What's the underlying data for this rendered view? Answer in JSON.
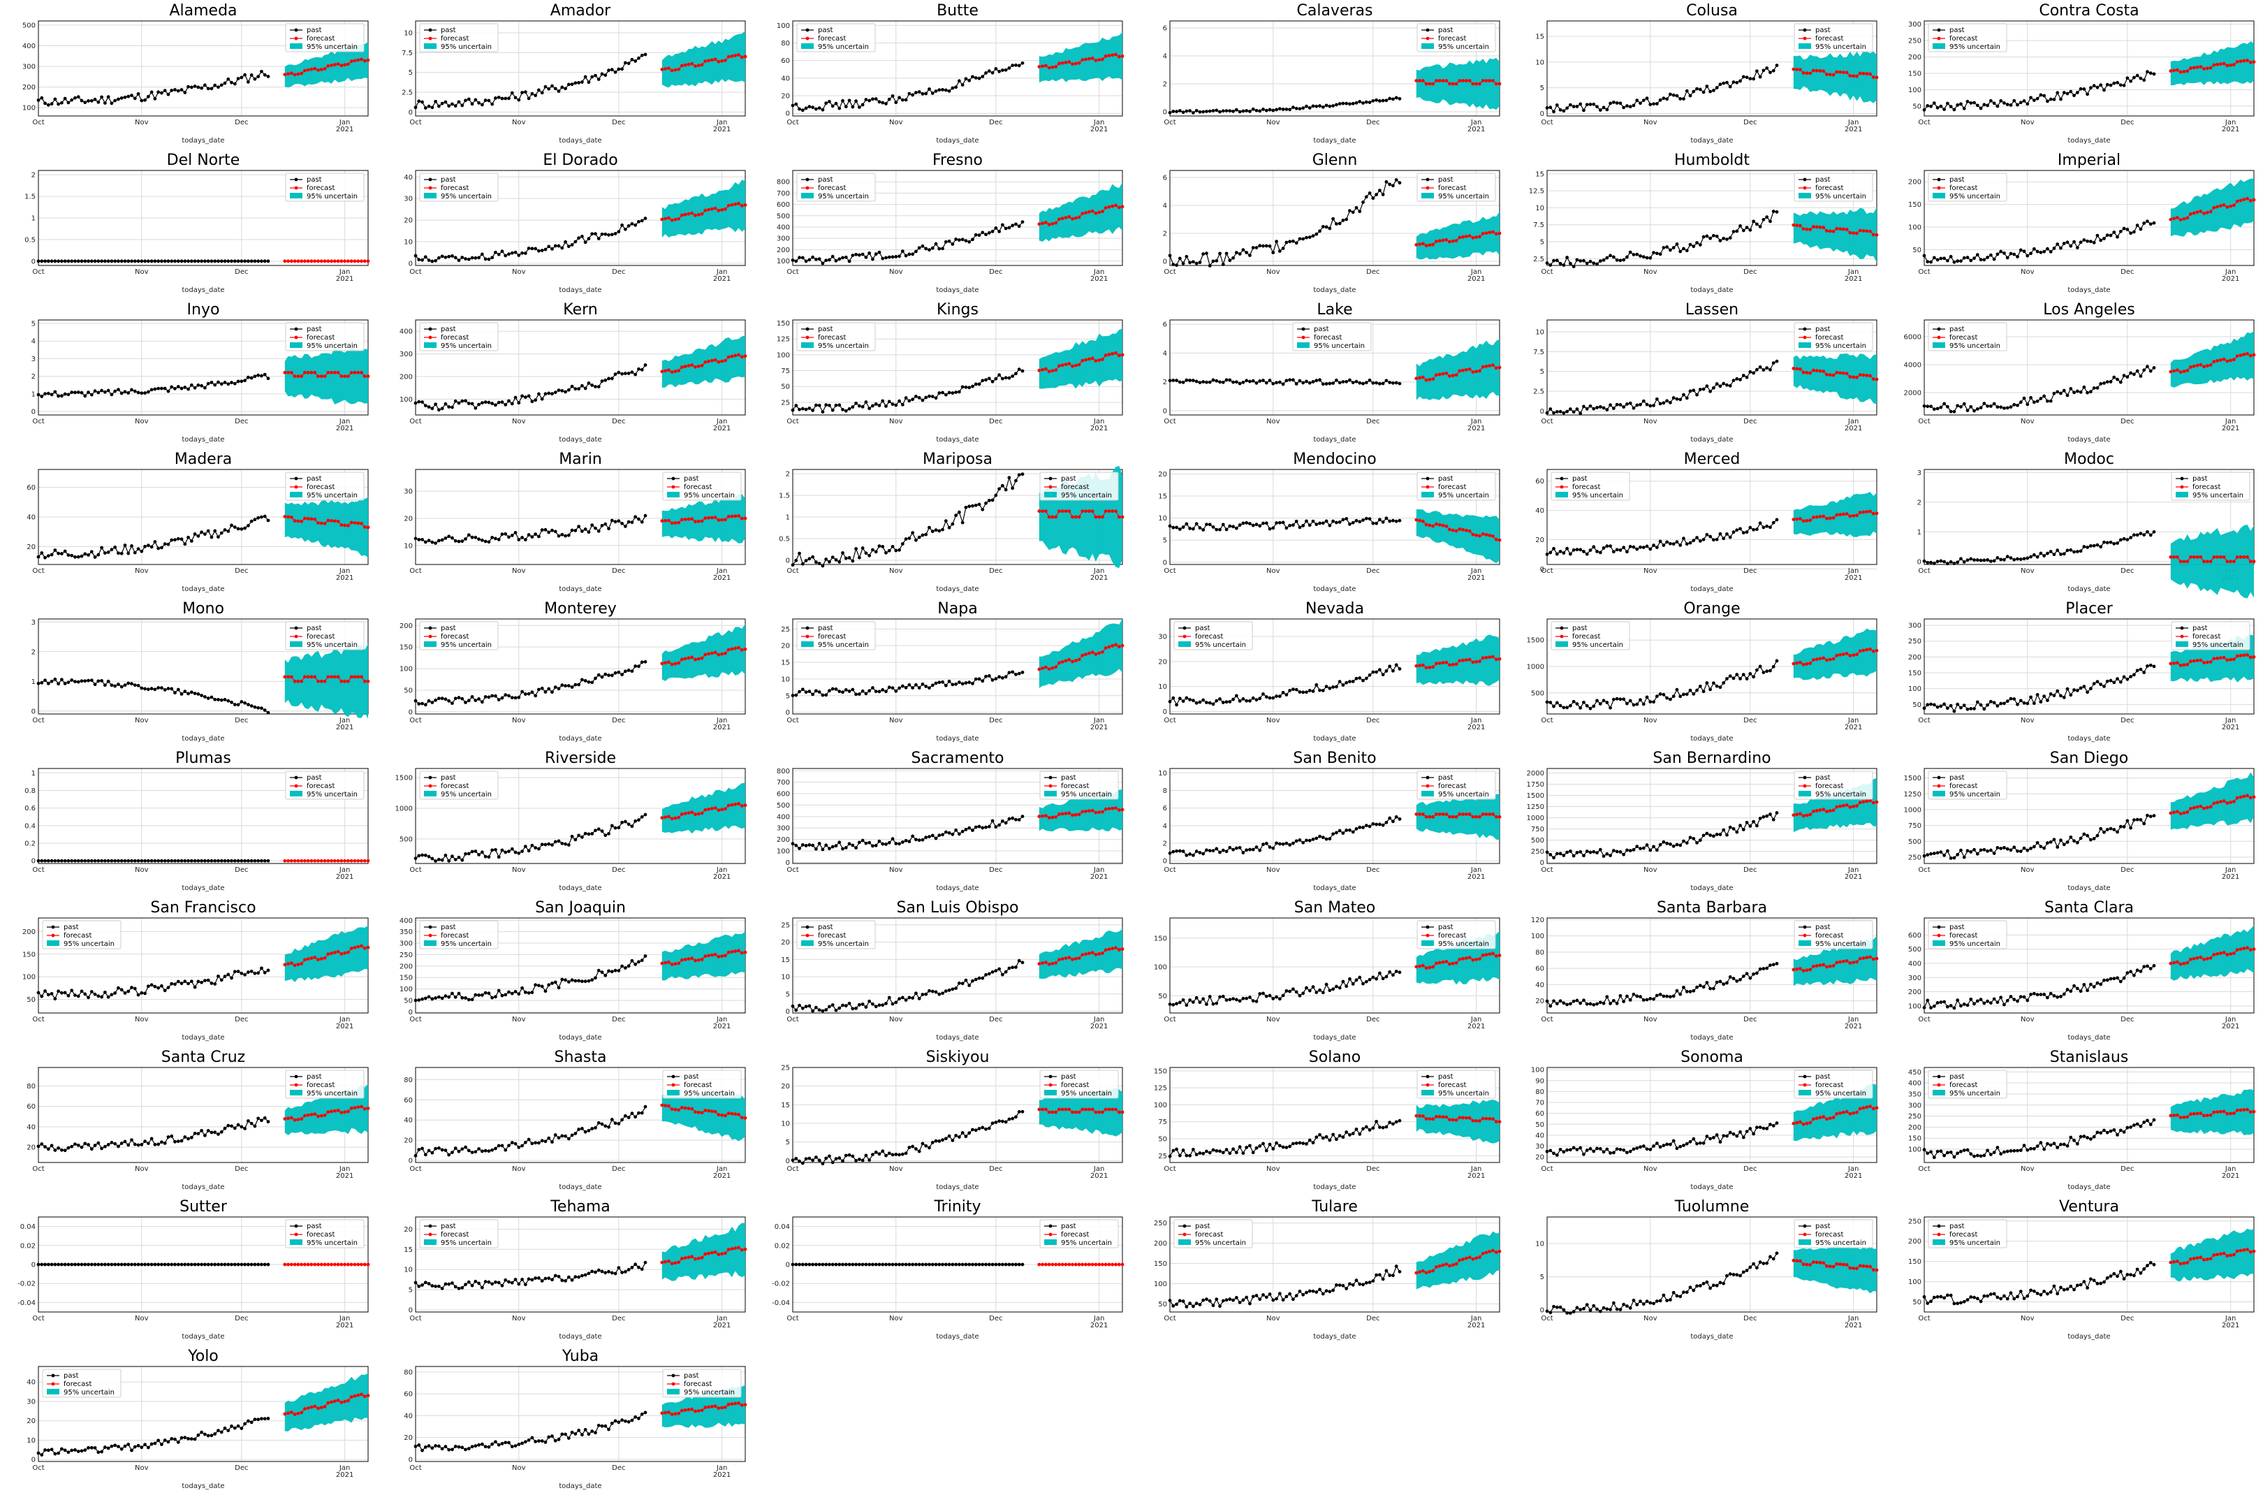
{
  "figure": {
    "legend": {
      "past": "past",
      "forecast": "forecast",
      "band": "95% uncertain"
    },
    "xlabel": "todays_date",
    "xticks": [
      "Oct",
      "Nov",
      "Dec",
      "Jan\n2021"
    ],
    "colors": {
      "past": "#000000",
      "forecast": "#ff0000",
      "band": "#00bfbf",
      "grid": "#d9d9d9"
    }
  },
  "chart_data": [
    {
      "county": "Alameda",
      "type": "line",
      "yticks": [
        100,
        200,
        300,
        400,
        500
      ],
      "ylim": [
        60,
        520
      ],
      "past_start": 130,
      "past_end": 270,
      "fc_start": 250,
      "fc_end": 330,
      "band": 70,
      "legend": "top-right",
      "legend_pos": "top-right"
    },
    {
      "county": "Amador",
      "type": "line",
      "yticks": [
        0.0,
        2.5,
        5.0,
        7.5,
        10.0
      ],
      "ylim": [
        -0.5,
        11.5
      ],
      "past_start": 1,
      "past_end": 7,
      "fc_start": 5,
      "fc_end": 7,
      "band": 2.5,
      "legend_pos": "top-left"
    },
    {
      "county": "Butte",
      "type": "line",
      "yticks": [
        0,
        20,
        40,
        60,
        80,
        100
      ],
      "ylim": [
        -3,
        105
      ],
      "past_start": 8,
      "past_end": 58,
      "fc_start": 50,
      "fc_end": 65,
      "band": 20,
      "legend_pos": "top-left"
    },
    {
      "county": "Calaveras",
      "type": "line",
      "yticks": [
        0,
        2,
        4,
        6
      ],
      "ylim": [
        -0.3,
        6.5
      ],
      "past_start": 0,
      "past_end": 1,
      "fc_start": 2,
      "fc_end": 2,
      "band": 1.5,
      "legend_pos": "top-right"
    },
    {
      "county": "Colusa",
      "type": "line",
      "yticks": [
        0,
        5,
        10,
        15
      ],
      "ylim": [
        -0.5,
        18
      ],
      "past_start": 1,
      "past_end": 9,
      "fc_start": 8,
      "fc_end": 7,
      "band": 4,
      "legend_pos": "top-right"
    },
    {
      "county": "Contra Costa",
      "type": "line",
      "yticks": [
        50,
        100,
        150,
        200,
        250,
        300
      ],
      "ylim": [
        20,
        310
      ],
      "past_start": 50,
      "past_end": 150,
      "fc_start": 150,
      "fc_end": 185,
      "band": 50,
      "legend_pos": "top-left"
    },
    {
      "county": "Del Norte",
      "type": "line",
      "yticks": [
        0.0,
        0.5,
        1.0,
        1.5,
        2.0
      ],
      "ylim": [
        -0.1,
        2.1
      ],
      "past_start": 0,
      "past_end": 0,
      "fc_start": 0,
      "fc_end": 0,
      "band": 0,
      "legend_pos": "top-right"
    },
    {
      "county": "El Dorado",
      "type": "line",
      "yticks": [
        0,
        10,
        20,
        30,
        40
      ],
      "ylim": [
        -1,
        43
      ],
      "past_start": 2,
      "past_end": 20,
      "fc_start": 19,
      "fc_end": 27,
      "band": 9,
      "legend_pos": "top-left"
    },
    {
      "county": "Fresno",
      "type": "line",
      "yticks": [
        100,
        200,
        300,
        400,
        500,
        600,
        700,
        800
      ],
      "ylim": [
        60,
        900
      ],
      "past_start": 110,
      "past_end": 450,
      "fc_start": 400,
      "fc_end": 580,
      "band": 170,
      "legend_pos": "top-left"
    },
    {
      "county": "Glenn",
      "type": "line",
      "yticks": [
        0,
        2,
        4,
        6
      ],
      "ylim": [
        -0.3,
        6.5
      ],
      "past_start": 0,
      "past_end": 6,
      "fc_start": 1,
      "fc_end": 2,
      "band": 1.2,
      "legend_pos": "top-right"
    },
    {
      "county": "Humboldt",
      "type": "line",
      "yticks": [
        2.5,
        5.0,
        7.5,
        10.0,
        12.5,
        15.0
      ],
      "ylim": [
        1.5,
        15.5
      ],
      "past_start": 2,
      "past_end": 9,
      "fc_start": 7,
      "fc_end": 6,
      "band": 3,
      "legend_pos": "top-right"
    },
    {
      "county": "Imperial",
      "type": "line",
      "yticks": [
        50,
        100,
        150,
        200
      ],
      "ylim": [
        15,
        225
      ],
      "past_start": 30,
      "past_end": 110,
      "fc_start": 110,
      "fc_end": 160,
      "band": 45,
      "legend_pos": "top-left"
    },
    {
      "county": "Inyo",
      "type": "line",
      "yticks": [
        0,
        1,
        2,
        3,
        4,
        5
      ],
      "ylim": [
        -0.2,
        5.2
      ],
      "past_start": 1,
      "past_end": 2,
      "fc_start": 2,
      "fc_end": 2,
      "band": 1.4,
      "legend_pos": "top-right"
    },
    {
      "county": "Kern",
      "type": "line",
      "yticks": [
        100,
        200,
        300,
        400
      ],
      "ylim": [
        30,
        450
      ],
      "past_start": 70,
      "past_end": 240,
      "fc_start": 210,
      "fc_end": 290,
      "band": 80,
      "legend_pos": "top-left"
    },
    {
      "county": "Kings",
      "type": "line",
      "yticks": [
        25,
        50,
        75,
        100,
        125,
        150
      ],
      "ylim": [
        5,
        155
      ],
      "past_start": 15,
      "past_end": 75,
      "fc_start": 70,
      "fc_end": 100,
      "band": 35,
      "legend_pos": "top-left"
    },
    {
      "county": "Lake",
      "type": "line",
      "yticks": [
        0,
        2,
        4,
        6
      ],
      "ylim": [
        -0.3,
        6.3
      ],
      "past_start": 2,
      "past_end": 2,
      "fc_start": 2,
      "fc_end": 3,
      "band": 1.6,
      "legend_pos": "top-center"
    },
    {
      "county": "Lassen",
      "type": "line",
      "yticks": [
        0.0,
        2.5,
        5.0,
        7.5,
        10.0
      ],
      "ylim": [
        -0.5,
        11.5
      ],
      "past_start": 0,
      "past_end": 6,
      "fc_start": 5,
      "fc_end": 4,
      "band": 2.5,
      "legend_pos": "top-right"
    },
    {
      "county": "Los Angeles",
      "type": "line",
      "yticks": [
        2000,
        4000,
        6000
      ],
      "ylim": [
        400,
        7200
      ],
      "past_start": 900,
      "past_end": 3800,
      "fc_start": 3300,
      "fc_end": 4700,
      "band": 1300,
      "legend_pos": "top-left"
    },
    {
      "county": "Madera",
      "type": "line",
      "yticks": [
        20,
        40,
        60
      ],
      "ylim": [
        8,
        72
      ],
      "past_start": 15,
      "past_end": 40,
      "fc_start": 38,
      "fc_end": 33,
      "band": 15,
      "legend_pos": "top-right"
    },
    {
      "county": "Marin",
      "type": "line",
      "yticks": [
        10,
        20,
        30
      ],
      "ylim": [
        3,
        38
      ],
      "past_start": 12,
      "past_end": 20,
      "fc_start": 18,
      "fc_end": 20,
      "band": 7,
      "legend_pos": "top-right"
    },
    {
      "county": "Mariposa",
      "type": "line",
      "yticks": [
        0.0,
        0.5,
        1.0,
        1.5,
        2.0
      ],
      "ylim": [
        -0.1,
        2.1
      ],
      "past_start": 0,
      "past_end": 2,
      "fc_start": 1,
      "fc_end": 1,
      "band": 0.9,
      "legend_pos": "top-right"
    },
    {
      "county": "Mendocino",
      "type": "line",
      "yticks": [
        0,
        5,
        10,
        15,
        20
      ],
      "ylim": [
        -0.5,
        21
      ],
      "past_start": 8,
      "past_end": 10,
      "fc_start": 9,
      "fc_end": 5,
      "band": 4,
      "legend_pos": "top-right"
    },
    {
      "county": "Merced",
      "type": "line",
      "yticks": [
        0,
        20,
        40,
        60
      ],
      "ylim": [
        3,
        68
      ],
      "past_start": 12,
      "past_end": 32,
      "fc_start": 32,
      "fc_end": 38,
      "band": 12,
      "legend_pos": "top-left"
    },
    {
      "county": "Modoc",
      "type": "line",
      "yticks": [
        0,
        1,
        2,
        3
      ],
      "ylim": [
        -0.1,
        3.1
      ],
      "past_start": 0,
      "past_end": 1,
      "fc_start": 0,
      "fc_end": 0,
      "band": 1,
      "legend_pos": "top-right"
    },
    {
      "county": "Mono",
      "type": "line",
      "yticks": [
        0,
        1,
        2,
        3
      ],
      "ylim": [
        -0.1,
        3.1
      ],
      "past_start": 1,
      "past_end": 0,
      "fc_start": 1,
      "fc_end": 1,
      "band": 1,
      "legend_pos": "top-right"
    },
    {
      "county": "Monterey",
      "type": "line",
      "yticks": [
        0,
        50,
        100,
        150,
        200
      ],
      "ylim": [
        -5,
        215
      ],
      "past_start": 25,
      "past_end": 110,
      "fc_start": 105,
      "fc_end": 145,
      "band": 45,
      "legend_pos": "top-left"
    },
    {
      "county": "Napa",
      "type": "line",
      "yticks": [
        0,
        5,
        10,
        15,
        20,
        25
      ],
      "ylim": [
        -0.5,
        28
      ],
      "past_start": 6,
      "past_end": 12,
      "fc_start": 12,
      "fc_end": 20,
      "band": 6,
      "legend_pos": "top-left"
    },
    {
      "county": "Nevada",
      "type": "line",
      "yticks": [
        0,
        10,
        20,
        30
      ],
      "ylim": [
        -1,
        37
      ],
      "past_start": 4,
      "past_end": 18,
      "fc_start": 17,
      "fc_end": 21,
      "band": 8,
      "legend_pos": "top-left"
    },
    {
      "county": "Orange",
      "type": "line",
      "yticks": [
        500,
        1000,
        1500
      ],
      "ylim": [
        100,
        1900
      ],
      "past_start": 250,
      "past_end": 1050,
      "fc_start": 1000,
      "fc_end": 1300,
      "band": 350,
      "legend_pos": "top-left"
    },
    {
      "county": "Placer",
      "type": "line",
      "yticks": [
        50,
        100,
        150,
        200,
        250,
        300
      ],
      "ylim": [
        20,
        320
      ],
      "past_start": 40,
      "past_end": 170,
      "fc_start": 170,
      "fc_end": 200,
      "band": 60,
      "legend_pos": "top-right"
    },
    {
      "county": "Plumas",
      "type": "line",
      "yticks": [
        0.0,
        0.2,
        0.4,
        0.6,
        0.8,
        1.0
      ],
      "ylim": [
        -0.03,
        1.05
      ],
      "past_start": 0,
      "past_end": 0,
      "fc_start": 0,
      "fc_end": 0,
      "band": 0,
      "legend_pos": "top-right"
    },
    {
      "county": "Riverside",
      "type": "line",
      "yticks": [
        500,
        1000,
        1500
      ],
      "ylim": [
        100,
        1650
      ],
      "past_start": 200,
      "past_end": 850,
      "fc_start": 800,
      "fc_end": 1050,
      "band": 300,
      "legend_pos": "top-left"
    },
    {
      "county": "Sacramento",
      "type": "line",
      "yticks": [
        0,
        100,
        200,
        300,
        400,
        500,
        600,
        700,
        800
      ],
      "ylim": [
        -10,
        820
      ],
      "past_start": 140,
      "past_end": 400,
      "fc_start": 380,
      "fc_end": 460,
      "band": 140,
      "legend_pos": "top-right"
    },
    {
      "county": "San Benito",
      "type": "line",
      "yticks": [
        0,
        2,
        4,
        6,
        8,
        10
      ],
      "ylim": [
        -0.3,
        10.5
      ],
      "past_start": 1,
      "past_end": 5,
      "fc_start": 5,
      "fc_end": 5,
      "band": 2,
      "legend_pos": "top-right"
    },
    {
      "county": "San Bernardino",
      "type": "line",
      "yticks": [
        0,
        250,
        500,
        750,
        1000,
        1250,
        1500,
        1750,
        2000
      ],
      "ylim": [
        -20,
        2100
      ],
      "past_start": 180,
      "past_end": 1050,
      "fc_start": 1000,
      "fc_end": 1350,
      "band": 400,
      "legend_pos": "top-right"
    },
    {
      "county": "San Diego",
      "type": "line",
      "yticks": [
        250,
        500,
        750,
        1000,
        1250,
        1500
      ],
      "ylim": [
        150,
        1650
      ],
      "past_start": 300,
      "past_end": 900,
      "fc_start": 900,
      "fc_end": 1200,
      "band": 300,
      "legend_pos": "top-left"
    },
    {
      "county": "San Francisco",
      "type": "line",
      "yticks": [
        50,
        100,
        150,
        200
      ],
      "ylim": [
        20,
        230
      ],
      "past_start": 60,
      "past_end": 120,
      "fc_start": 120,
      "fc_end": 165,
      "band": 45,
      "legend_pos": "top-left"
    },
    {
      "county": "San Joaquin",
      "type": "line",
      "yticks": [
        0,
        50,
        100,
        150,
        200,
        250,
        300,
        350,
        400
      ],
      "ylim": [
        -5,
        410
      ],
      "past_start": 60,
      "past_end": 230,
      "fc_start": 200,
      "fc_end": 260,
      "band": 80,
      "legend_pos": "top-left"
    },
    {
      "county": "San Luis Obispo",
      "type": "line",
      "yticks": [
        0,
        5,
        10,
        15,
        20,
        25
      ],
      "ylim": [
        -0.5,
        27
      ],
      "past_start": 1,
      "past_end": 14,
      "fc_start": 13,
      "fc_end": 18,
      "band": 5,
      "legend_pos": "top-left"
    },
    {
      "county": "San Mateo",
      "type": "line",
      "yticks": [
        50,
        100,
        150
      ],
      "ylim": [
        20,
        185
      ],
      "past_start": 40,
      "past_end": 95,
      "fc_start": 95,
      "fc_end": 120,
      "band": 35,
      "legend_pos": "top-right"
    },
    {
      "county": "Santa Barbara",
      "type": "line",
      "yticks": [
        20,
        40,
        60,
        80,
        100,
        120
      ],
      "ylim": [
        5,
        122
      ],
      "past_start": 18,
      "past_end": 62,
      "fc_start": 55,
      "fc_end": 72,
      "band": 22,
      "legend_pos": "top-right"
    },
    {
      "county": "Santa Clara",
      "type": "line",
      "yticks": [
        100,
        200,
        300,
        400,
        500,
        600
      ],
      "ylim": [
        50,
        720
      ],
      "past_start": 110,
      "past_end": 380,
      "fc_start": 380,
      "fc_end": 500,
      "band": 130,
      "legend_pos": "top-left"
    },
    {
      "county": "Santa Cruz",
      "type": "line",
      "yticks": [
        20,
        40,
        60,
        80
      ],
      "ylim": [
        5,
        98
      ],
      "past_start": 20,
      "past_end": 47,
      "fc_start": 45,
      "fc_end": 58,
      "band": 18,
      "legend_pos": "top-right"
    },
    {
      "county": "Shasta",
      "type": "line",
      "yticks": [
        0,
        20,
        40,
        60,
        80
      ],
      "ylim": [
        -2,
        92
      ],
      "past_start": 8,
      "past_end": 50,
      "fc_start": 52,
      "fc_end": 42,
      "band": 18,
      "legend_pos": "top-right"
    },
    {
      "county": "Siskiyou",
      "type": "line",
      "yticks": [
        0,
        5,
        10,
        15,
        20,
        25
      ],
      "ylim": [
        -0.5,
        25
      ],
      "past_start": 0,
      "past_end": 13,
      "fc_start": 13,
      "fc_end": 13,
      "band": 5,
      "legend_pos": "top-right"
    },
    {
      "county": "Solano",
      "type": "line",
      "yticks": [
        25,
        50,
        75,
        100,
        125,
        150
      ],
      "ylim": [
        15,
        155
      ],
      "past_start": 30,
      "past_end": 80,
      "fc_start": 80,
      "fc_end": 75,
      "band": 25,
      "legend_pos": "top-right"
    },
    {
      "county": "Sonoma",
      "type": "line",
      "yticks": [
        20,
        30,
        40,
        50,
        60,
        70,
        80,
        90,
        100
      ],
      "ylim": [
        15,
        102
      ],
      "past_start": 25,
      "past_end": 48,
      "fc_start": 48,
      "fc_end": 65,
      "band": 18,
      "legend_pos": "top-right"
    },
    {
      "county": "Stanislaus",
      "type": "line",
      "yticks": [
        100,
        150,
        200,
        250,
        300,
        350,
        400,
        450
      ],
      "ylim": [
        40,
        470
      ],
      "past_start": 80,
      "past_end": 230,
      "fc_start": 240,
      "fc_end": 270,
      "band": 80,
      "legend_pos": "top-left"
    },
    {
      "county": "Sutter",
      "type": "line",
      "yticks": [
        -0.04,
        -0.02,
        0.0,
        0.02,
        0.04
      ],
      "ylim": [
        -0.05,
        0.05
      ],
      "past_start": 0,
      "past_end": 0,
      "fc_start": 0,
      "fc_end": 0,
      "band": 0,
      "legend_pos": "top-right"
    },
    {
      "county": "Tehama",
      "type": "line",
      "yticks": [
        0,
        5,
        10,
        15,
        20
      ],
      "ylim": [
        -0.5,
        23
      ],
      "past_start": 6,
      "past_end": 11,
      "fc_start": 11,
      "fc_end": 15,
      "band": 5,
      "legend_pos": "top-left"
    },
    {
      "county": "Trinity",
      "type": "line",
      "yticks": [
        -0.04,
        -0.02,
        0.0,
        0.02,
        0.04
      ],
      "ylim": [
        -0.05,
        0.05
      ],
      "past_start": 0,
      "past_end": 0,
      "fc_start": 0,
      "fc_end": 0,
      "band": 0,
      "legend_pos": "top-right"
    },
    {
      "county": "Tulare",
      "type": "line",
      "yticks": [
        50,
        100,
        150,
        200,
        250
      ],
      "ylim": [
        30,
        265
      ],
      "past_start": 50,
      "past_end": 135,
      "fc_start": 120,
      "fc_end": 180,
      "band": 45,
      "legend_pos": "top-left"
    },
    {
      "county": "Tuolumne",
      "type": "line",
      "yticks": [
        0,
        5,
        10
      ],
      "ylim": [
        -0.3,
        14
      ],
      "past_start": 0,
      "past_end": 8,
      "fc_start": 7,
      "fc_end": 6,
      "band": 3,
      "legend_pos": "top-right"
    },
    {
      "county": "Ventura",
      "type": "line",
      "yticks": [
        50,
        100,
        150,
        200,
        250
      ],
      "ylim": [
        25,
        260
      ],
      "past_start": 55,
      "past_end": 140,
      "fc_start": 140,
      "fc_end": 175,
      "band": 50,
      "legend_pos": "top-left"
    },
    {
      "county": "Yolo",
      "type": "line",
      "yticks": [
        0,
        10,
        20,
        30,
        40
      ],
      "ylim": [
        -1,
        48
      ],
      "past_start": 4,
      "past_end": 22,
      "fc_start": 22,
      "fc_end": 33,
      "band": 10,
      "legend_pos": "top-left"
    },
    {
      "county": "Yuba",
      "type": "line",
      "yticks": [
        0,
        20,
        40,
        60,
        80
      ],
      "ylim": [
        -2,
        85
      ],
      "past_start": 10,
      "past_end": 40,
      "fc_start": 40,
      "fc_end": 50,
      "band": 15,
      "legend_pos": "top-right"
    }
  ]
}
